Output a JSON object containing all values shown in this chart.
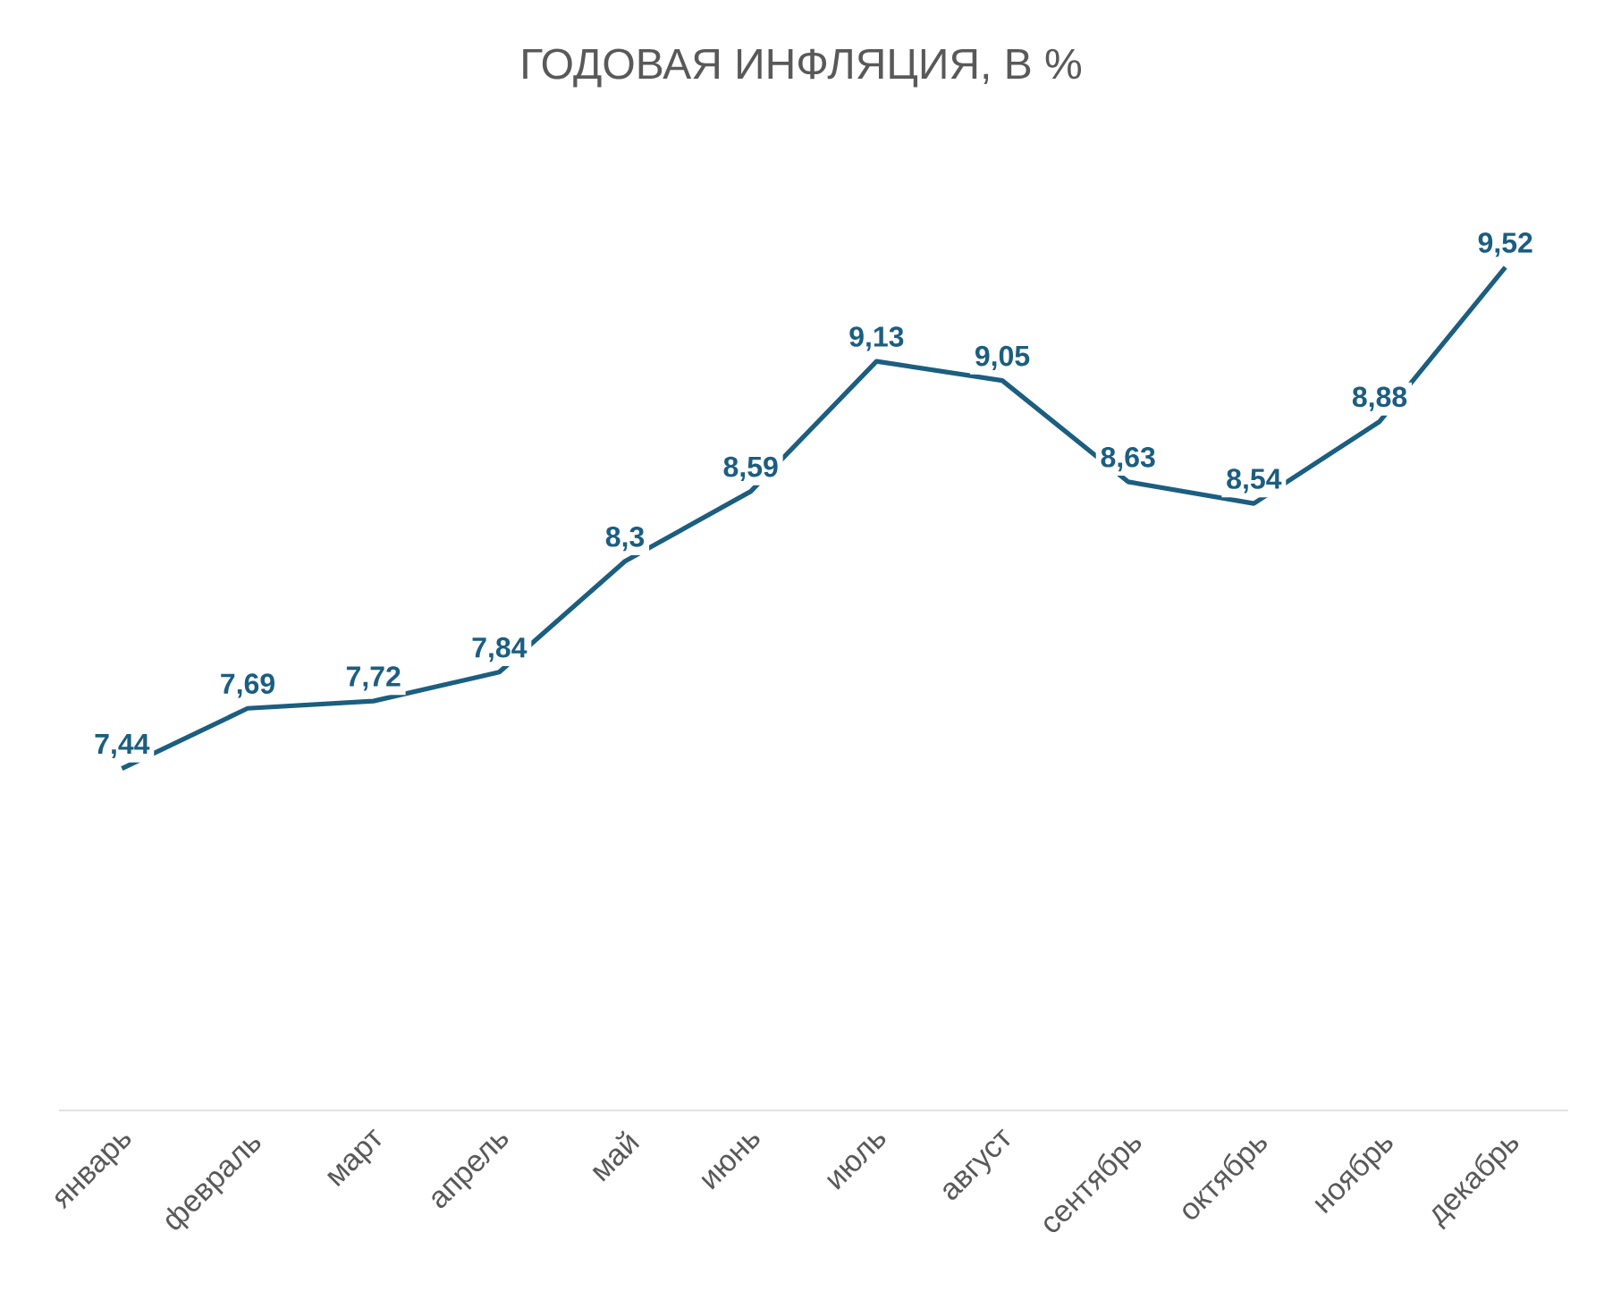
{
  "chart_data": {
    "type": "line",
    "title": "ГОДОВАЯ ИНФЛЯЦИЯ, В %",
    "categories": [
      "январь",
      "февраль",
      "март",
      "апрель",
      "май",
      "июнь",
      "июль",
      "август",
      "сентябрь",
      "октябрь",
      "ноябрь",
      "декабрь"
    ],
    "values": [
      7.44,
      7.69,
      7.72,
      7.84,
      8.3,
      8.59,
      9.13,
      9.05,
      8.63,
      8.54,
      8.88,
      9.52
    ],
    "value_labels": [
      "7,44",
      "7,69",
      "7,72",
      "7,84",
      "8,3",
      "8,59",
      "9,13",
      "9,05",
      "8,63",
      "8,54",
      "8,88",
      "9,52"
    ],
    "color": "#1b5e80",
    "marker": "none",
    "line_style": "solid"
  }
}
